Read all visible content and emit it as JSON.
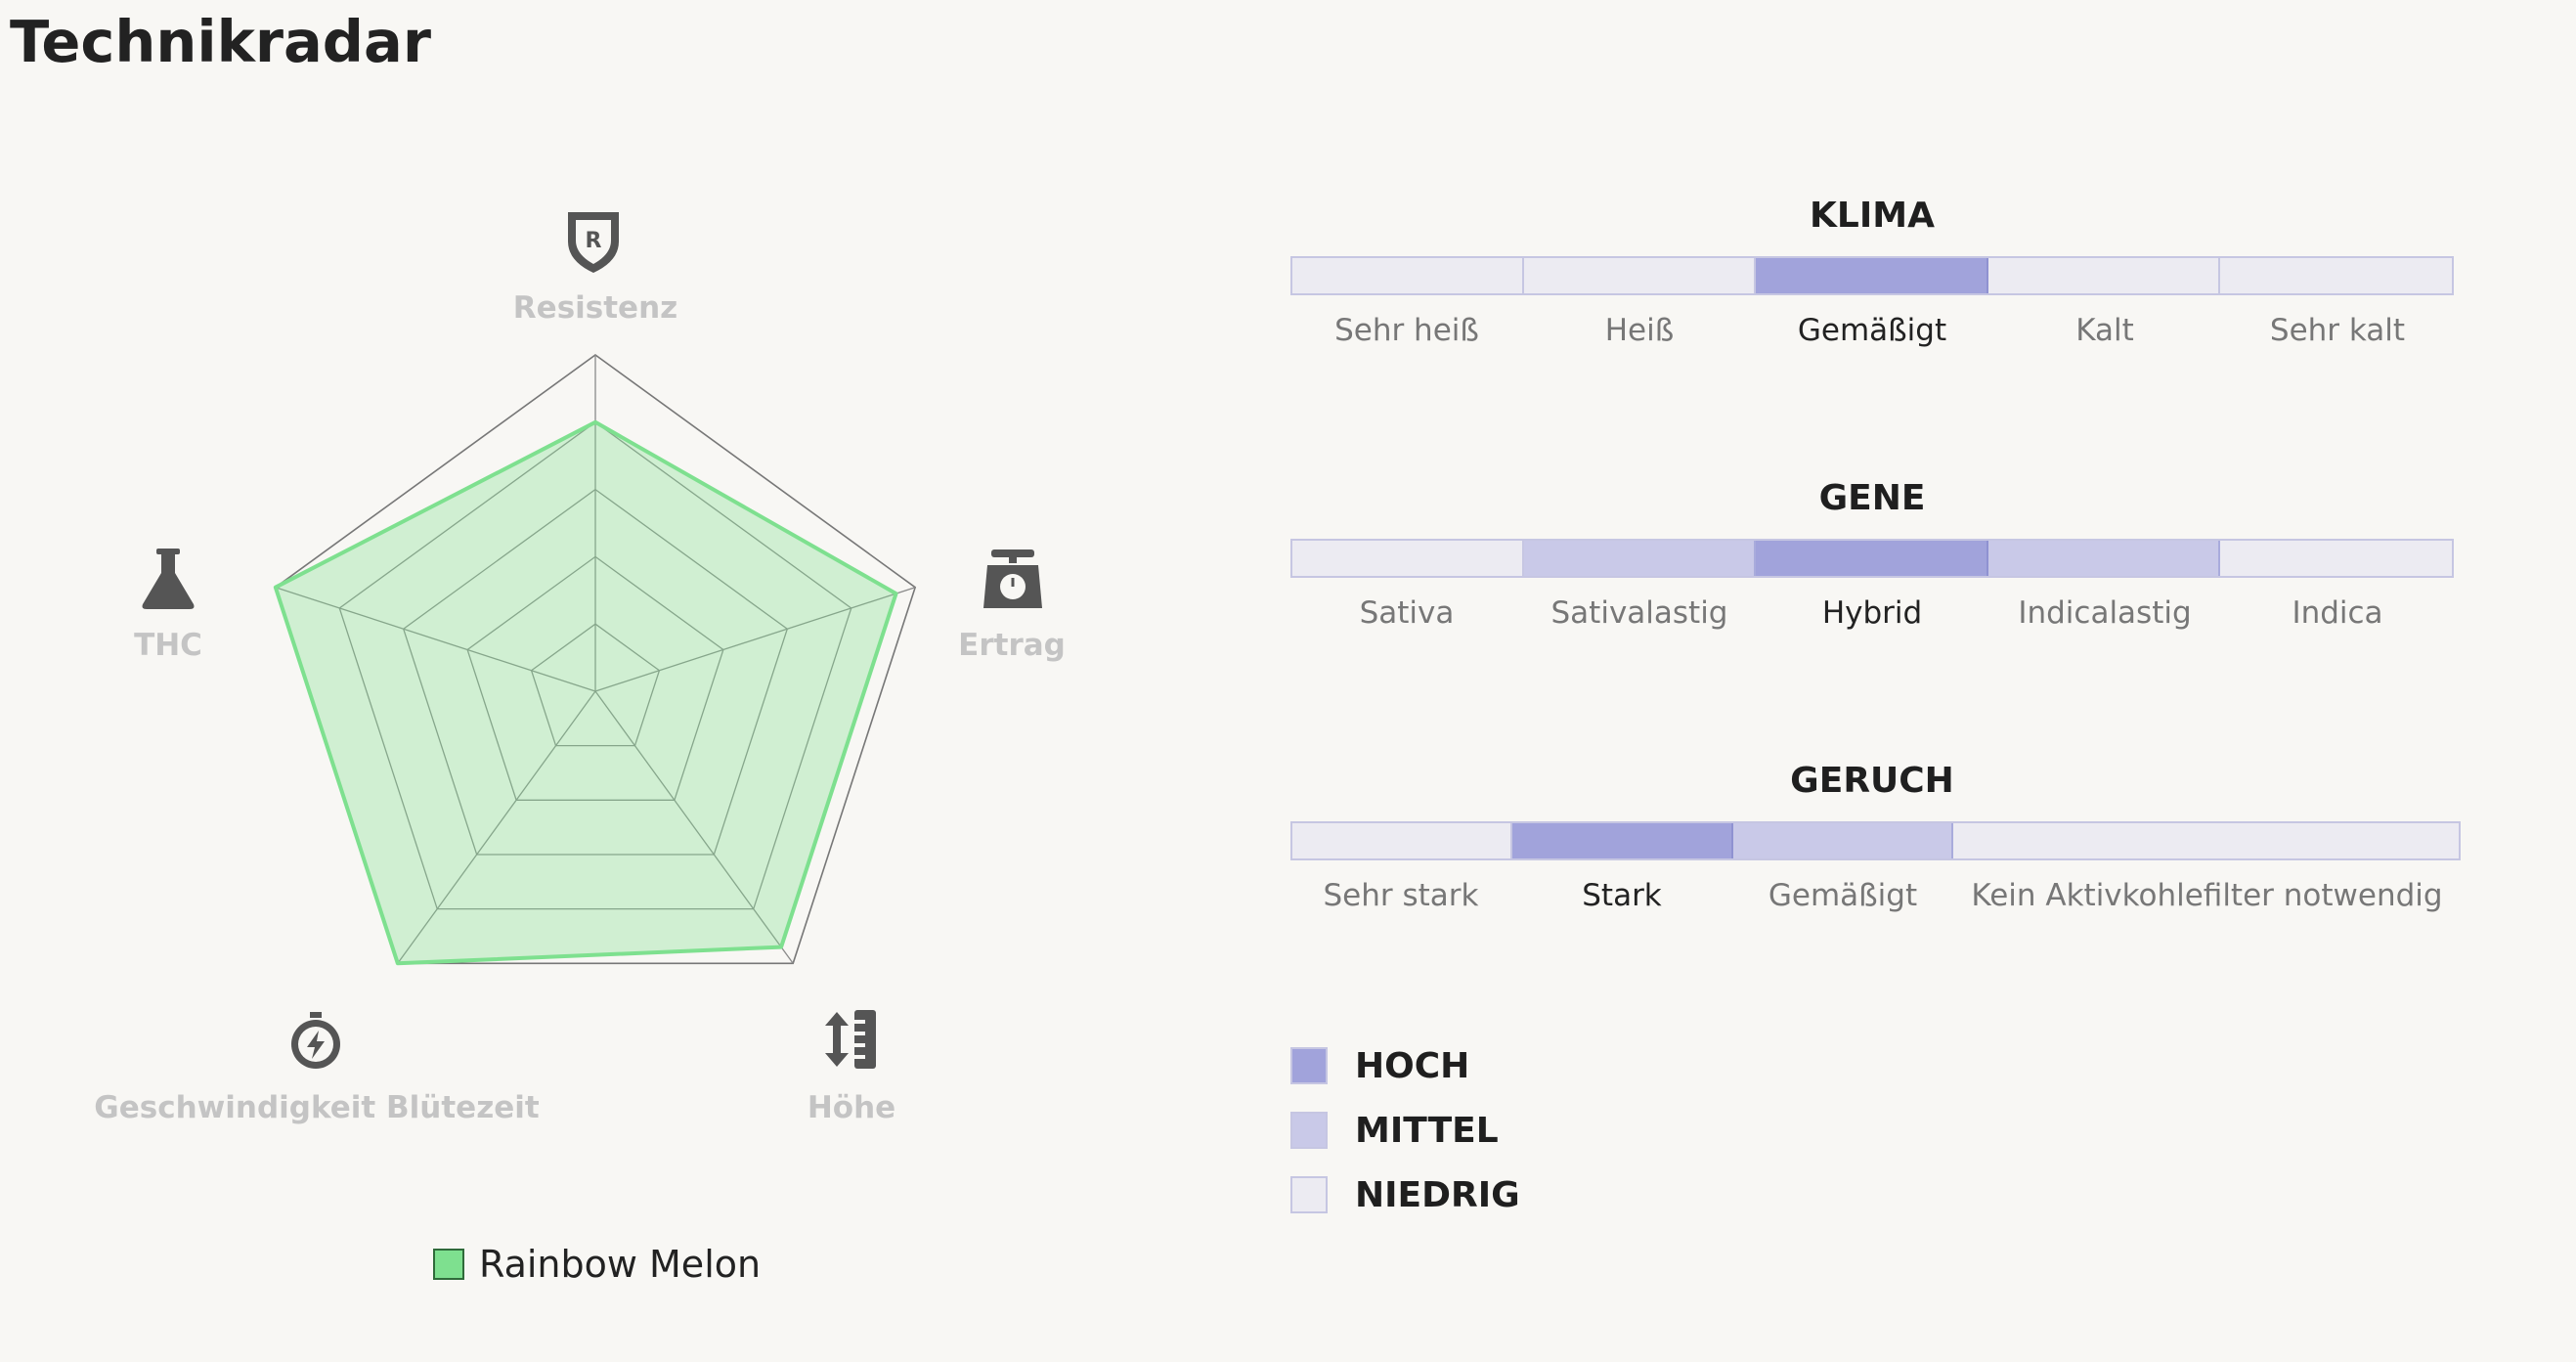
{
  "page": {
    "title": "Technikradar"
  },
  "colors": {
    "hoch": "#a1a3db",
    "mittel": "#c9c9e8",
    "niedrig": "#ecebf2",
    "series": "#7ee08f"
  },
  "chart_data": {
    "type": "radar",
    "title": "",
    "axes": [
      {
        "label": "Resistenz",
        "icon": "shield-r-icon"
      },
      {
        "label": "Ertrag",
        "icon": "scale-icon"
      },
      {
        "label": "Höhe",
        "icon": "ruler-height-icon"
      },
      {
        "label": "Geschwindigkeit Blütezeit",
        "icon": "stopwatch-icon"
      },
      {
        "label": "THC",
        "icon": "flask-icon"
      }
    ],
    "max": 5,
    "rings": 5,
    "grid": true,
    "series": [
      {
        "name": "Rainbow Melon",
        "color": "#7ee08f",
        "values": [
          4.0,
          4.7,
          4.7,
          5.0,
          5.0
        ]
      }
    ],
    "legend": {
      "position": "bottom"
    }
  },
  "scales": [
    {
      "title": "KLIMA",
      "segments": [
        {
          "label": "Sehr heiß",
          "level": "niedrig"
        },
        {
          "label": "Heiß",
          "level": "niedrig"
        },
        {
          "label": "Gemäßigt",
          "level": "hoch"
        },
        {
          "label": "Kalt",
          "level": "niedrig"
        },
        {
          "label": "Sehr kalt",
          "level": "niedrig"
        }
      ]
    },
    {
      "title": "GENE",
      "segments": [
        {
          "label": "Sativa",
          "level": "niedrig"
        },
        {
          "label": "Sativalastig",
          "level": "mittel"
        },
        {
          "label": "Hybrid",
          "level": "hoch"
        },
        {
          "label": "Indicalastig",
          "level": "mittel"
        },
        {
          "label": "Indica",
          "level": "niedrig"
        }
      ]
    },
    {
      "title": "GERUCH",
      "segments": [
        {
          "label": "Sehr stark",
          "level": "niedrig"
        },
        {
          "label": "Stark",
          "level": "hoch"
        },
        {
          "label": "Gemäßigt",
          "level": "mittel"
        },
        {
          "label": "Kein Aktivkohlefilter notwendig",
          "level": "niedrig"
        }
      ]
    }
  ],
  "level_legend": [
    {
      "key": "hoch",
      "label": "HOCH"
    },
    {
      "key": "mittel",
      "label": "MITTEL"
    },
    {
      "key": "niedrig",
      "label": "NIEDRIG"
    }
  ]
}
